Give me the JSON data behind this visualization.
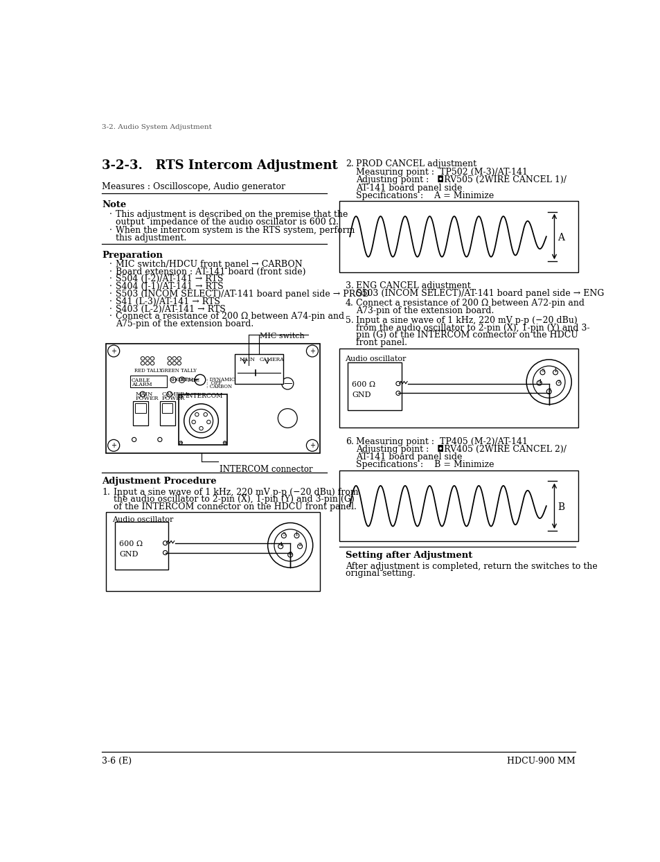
{
  "page_bg": "#ffffff",
  "header_text": "3-2. Audio System Adjustment",
  "footer_left": "3-6 (E)",
  "footer_right": "HDCU-900 MM",
  "title": "3-2-3.   RTS Intercom Adjustment",
  "measures_line": "Measures : Oscilloscope, Audio generator",
  "note_header": "Note",
  "note_b1_l1": "This adjustment is described on the premise that the",
  "note_b1_l2": "output  impedance of the audio oscillator is 600 Ω.",
  "note_b2_l1": "When the intercom system is the RTS system, perform",
  "note_b2_l2": "this adjustment.",
  "prep_header": "Preparation",
  "prep_bullets": [
    "MIC switch/HDCU front panel → CARBON",
    "Board extension : AT-141 board (front side)",
    "S504 (J-2)/AT-141 → RTS",
    "S404 (J-1)/AT-141 → RTS",
    "S503 (INCOM SELECT)/AT-141 board panel side → PROD",
    "S41 (L-3)/AT-141 → RTS",
    "S403 (L-2)/AT-141 → RTS"
  ],
  "prep_last_l1": "Connect a resistance of 200 Ω between A74-pin and",
  "prep_last_l2": "A75-pin of the extension board.",
  "adj_header": "Adjustment Procedure",
  "item1_l1": "Input a sine wave of 1 kHz, 220 mV p-p (−20 dBu) from",
  "item1_l2": "the audio oscillator to 2-pin (X), 1-pin (Y) and 3-pin (G)",
  "item1_l3": "of the INTERCOM connector on the HDCU front panel.",
  "item2_title": "PROD CANCEL adjustment",
  "item2_mp": "Measuring point :  TP502 (M-3)/AT-141",
  "item2_ap_l1": "Adjusting point :   ◘RV505 (2WIRE CANCEL 1)/",
  "item2_ap_l2": "AT-141 board panel side",
  "item2_spec": "Specifications :    A = Minimize",
  "item3_l1": "ENG CANCEL adjustment",
  "item3_l2": "S503 (INCOM SELECT)/AT-141 board panel side → ENG",
  "item4_l1": "Connect a resistance of 200 Ω between A72-pin and",
  "item4_l2": "A73-pin of the extension board.",
  "item5_l1": "Input a sine wave of 1 kHz, 220 mV p-p (−20 dBu)",
  "item5_l2": "from the audio oscillator to 2-pin (X), 1-pin (Y) and 3-",
  "item5_l3": "pin (G) of the INTERCOM connector on the HDCU",
  "item5_l4": "front panel.",
  "item6_l1": "Measuring point :  TP405 (M-2)/AT-141",
  "item6_l2": "Adjusting point :   ◘RV405 (2WIRE CANCEL 2)/",
  "item6_l3": "AT-141 board panel side",
  "item6_l4": "Specifications :    B = Minimize",
  "setting_header": "Setting after Adjustment",
  "setting_l1": "After adjustment is completed, return the switches to the",
  "setting_l2": "original setting.",
  "audio_osc": "Audio oscillator",
  "r600": "600 Ω",
  "gnd": "GND",
  "mic_switch_lbl": "MIC switch",
  "intercom_lbl": "INTERCOM connector"
}
